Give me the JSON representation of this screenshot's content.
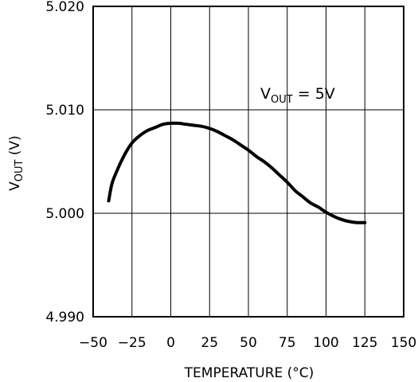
{
  "chart_data": {
    "type": "line",
    "xlabel": "TEMPERATURE (°C)",
    "ylabel": {
      "main": "V",
      "sub": "OUT",
      "rest": " (V)"
    },
    "xlim": [
      -50,
      150
    ],
    "ylim": [
      4.99,
      5.02
    ],
    "xticks": [
      -50,
      -25,
      0,
      25,
      50,
      75,
      100,
      125,
      150
    ],
    "xtick_labels": [
      "−50",
      "−25",
      "0",
      "25",
      "50",
      "75",
      "100",
      "125",
      "150"
    ],
    "yticks": [
      4.99,
      5.0,
      5.01,
      5.02
    ],
    "ytick_labels": [
      "4.990",
      "5.000",
      "5.010",
      "5.020"
    ],
    "grid": true,
    "annotation": {
      "main": "V",
      "sub": "OUT",
      "rest": " = 5V"
    },
    "series": [
      {
        "x": [
          -40,
          -38,
          -35,
          -30,
          -25,
          -20,
          -15,
          -10,
          -5,
          0,
          5,
          10,
          15,
          20,
          25,
          30,
          35,
          40,
          45,
          50,
          55,
          60,
          65,
          70,
          75,
          80,
          85,
          90,
          95,
          100,
          105,
          110,
          115,
          120,
          125
        ],
        "values": [
          5.0012,
          5.0028,
          5.004,
          5.0056,
          5.0068,
          5.0075,
          5.008,
          5.0083,
          5.0086,
          5.0087,
          5.0087,
          5.0086,
          5.0085,
          5.0084,
          5.0082,
          5.0079,
          5.0075,
          5.0071,
          5.0066,
          5.0061,
          5.0055,
          5.005,
          5.0044,
          5.0037,
          5.003,
          5.0022,
          5.0016,
          5.001,
          5.0006,
          5.0001,
          4.9997,
          4.9994,
          4.9992,
          4.9991,
          4.9991
        ]
      }
    ]
  }
}
